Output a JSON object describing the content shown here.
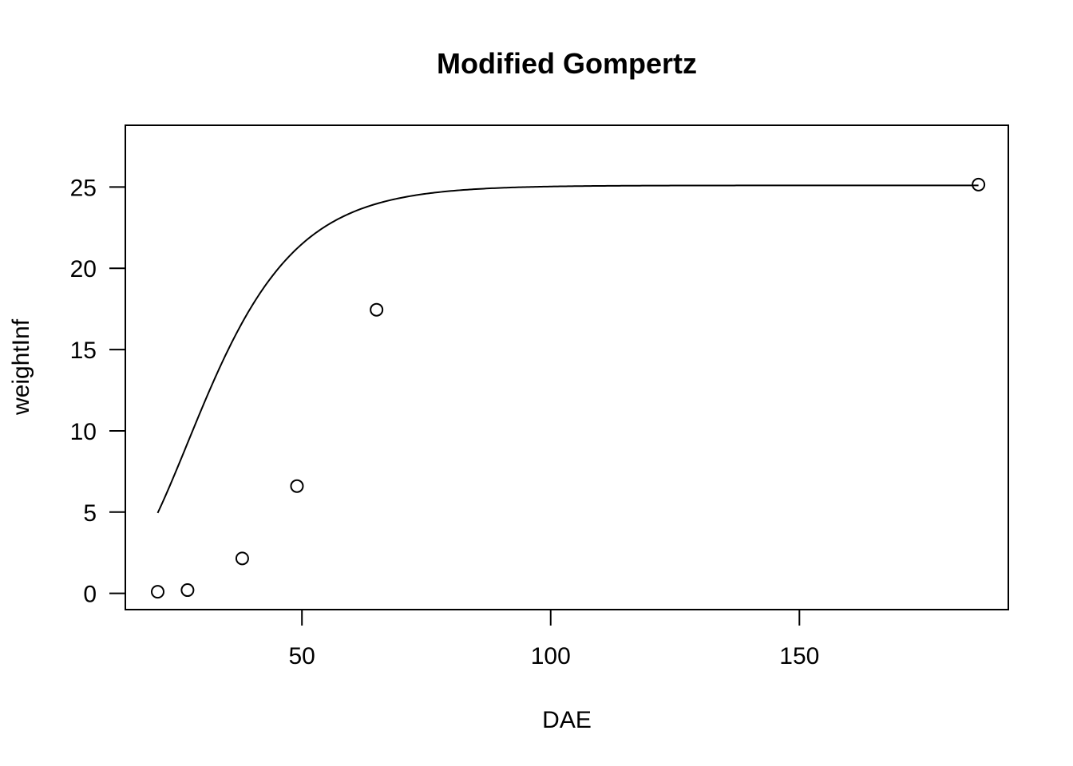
{
  "chart_data": {
    "type": "scatter",
    "title": "Modified Gompertz",
    "xlabel": "DAE",
    "ylabel": "weightInf",
    "xlim": [
      14.5,
      192
    ],
    "ylim": [
      -1,
      28.8
    ],
    "x_ticks": [
      50,
      100,
      150
    ],
    "y_ticks": [
      0,
      5,
      10,
      15,
      20,
      25
    ],
    "grid": false,
    "legend": "none",
    "colors": {
      "points": "#000000",
      "curve": "#000000",
      "frame": "#000000"
    },
    "series": [
      {
        "type": "points",
        "x": [
          21,
          27,
          38,
          49,
          65,
          186
        ],
        "y": [
          0.1,
          0.2,
          2.15,
          6.6,
          17.45,
          25.15
        ]
      },
      {
        "type": "fitted-curve",
        "model": "modified-gompertz",
        "params": {
          "asym": 25.1,
          "b": 8.9,
          "c": 0.081
        },
        "x_range": [
          21,
          186
        ]
      }
    ]
  }
}
